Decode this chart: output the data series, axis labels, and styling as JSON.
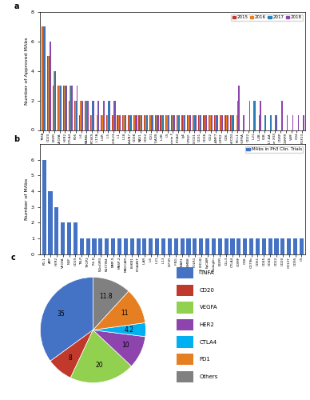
{
  "panel_a": {
    "ylabel": "Number of Approved MAbs",
    "categories": [
      "TNFA",
      "CD20",
      "EGFR",
      "VEGFA",
      "HER2",
      "CTLA4",
      "PD5",
      "IL6",
      "RANKL",
      "PCSK9",
      "IL17A",
      "IL6R",
      "IL5",
      "IL12/IL23",
      "IL1",
      "IL18",
      "ITGA4/B7",
      "CD38",
      "RAV1",
      "CD52",
      "CD1",
      "ITGA2B",
      "IL2B",
      "C5",
      "Protein F",
      "ITGA4",
      "IgE",
      "VEGF/PIGF",
      "CD10/CD1",
      "CD31",
      "CD38",
      "GD2",
      "SLAMF7",
      "VEGFR2",
      "CD6",
      "EPCAM/CD3",
      "PD-L1",
      "PDGFRA",
      "CD22",
      "IL21",
      "IL4B",
      "L5B",
      "IL17-AA",
      "Factor X/IX",
      "CGRP",
      "CGRPR",
      "VWF",
      "CD4",
      "FGF23"
    ],
    "values_2015": [
      7,
      5,
      3,
      3,
      3,
      2,
      2,
      1,
      2,
      1,
      0,
      1,
      1,
      1,
      1,
      1,
      1,
      1,
      1,
      1,
      1,
      1,
      1,
      1,
      1,
      1,
      1,
      1,
      1,
      1,
      1,
      1,
      1,
      1,
      1,
      1,
      0,
      0,
      0,
      0,
      0,
      0,
      0,
      0,
      0,
      0,
      0,
      0,
      0
    ],
    "values_2016": [
      7,
      5,
      4,
      3,
      3,
      3,
      2,
      2,
      2,
      1,
      1,
      1,
      1,
      1,
      1,
      1,
      1,
      1,
      1,
      1,
      1,
      1,
      1,
      1,
      1,
      1,
      1,
      1,
      1,
      1,
      1,
      1,
      1,
      1,
      1,
      1,
      1,
      0,
      0,
      0,
      0,
      0,
      0,
      0,
      0,
      0,
      0,
      0,
      0
    ],
    "values_2017": [
      7,
      5,
      4,
      3,
      3,
      3,
      2,
      2,
      2,
      2,
      2,
      2,
      2,
      2,
      1,
      1,
      1,
      1,
      1,
      1,
      1,
      1,
      1,
      1,
      1,
      1,
      1,
      1,
      1,
      1,
      1,
      1,
      1,
      1,
      1,
      1,
      2,
      1,
      0,
      2,
      1,
      1,
      1,
      1,
      0,
      0,
      0,
      0,
      0
    ],
    "values_2018": [
      7,
      6,
      4,
      3,
      3,
      3,
      3,
      2,
      2,
      2,
      2,
      2,
      2,
      2,
      1,
      1,
      1,
      1,
      1,
      1,
      1,
      1,
      1,
      1,
      1,
      1,
      1,
      1,
      1,
      1,
      1,
      1,
      1,
      1,
      1,
      1,
      3,
      1,
      2,
      2,
      2,
      1,
      1,
      1,
      2,
      1,
      1,
      1,
      1
    ],
    "colors": [
      "#c0392b",
      "#e67e22",
      "#2980b9",
      "#8e44ad"
    ],
    "legend_labels": [
      "2015",
      "2016",
      "2017",
      "2018"
    ],
    "ylim": [
      0,
      8
    ]
  },
  "panel_b": {
    "ylabel": "Number of MAbs",
    "legend_label": "MAbs in Ph3 Clin. Trials",
    "categories": [
      "PD-1",
      "APP",
      "HER2",
      "VEGFA",
      "NGF",
      "CD19",
      "TSLP",
      "TROP2",
      "Rh D",
      "NGoGM3",
      "NECTIN4",
      "MMP-9",
      "MASP-2",
      "MADCAM",
      "BUKB1",
      "ITGA4B7",
      "ILAR",
      "IL6",
      "IL21",
      "IL13",
      "IGF1R",
      "IFNG",
      "IFNAR1",
      "IgAMB8",
      "FOLR1",
      "FN (ED-B)",
      "EpCAM",
      "Endoglin",
      "EGFR",
      "DLL3",
      "CTLA4",
      "COMP",
      "CD8",
      "CD79b",
      "CD61",
      "CD45",
      "CD48",
      "CD22",
      "CD20",
      "CD137",
      "CD95",
      "C5"
    ],
    "values": [
      6,
      4,
      3,
      2,
      2,
      2,
      1,
      1,
      1,
      1,
      1,
      1,
      1,
      1,
      1,
      1,
      1,
      1,
      1,
      1,
      1,
      1,
      1,
      1,
      1,
      1,
      1,
      1,
      1,
      1,
      1,
      1,
      1,
      1,
      1,
      1,
      1,
      1,
      1,
      1,
      1,
      1
    ],
    "color": "#4472c4",
    "ylim": [
      0,
      7
    ]
  },
  "panel_c": {
    "labels": [
      "TNFA",
      "CD20",
      "VEGFA",
      "HER2",
      "CTLA4",
      "PD1",
      "Others"
    ],
    "values": [
      35,
      8,
      20,
      10,
      4.2,
      11,
      11.8
    ],
    "colors": [
      "#4472c4",
      "#c0392b",
      "#92d050",
      "#8e44ad",
      "#00b0f0",
      "#e67e22",
      "#808080"
    ],
    "startangle": 90
  },
  "figure_bg": "#ffffff"
}
